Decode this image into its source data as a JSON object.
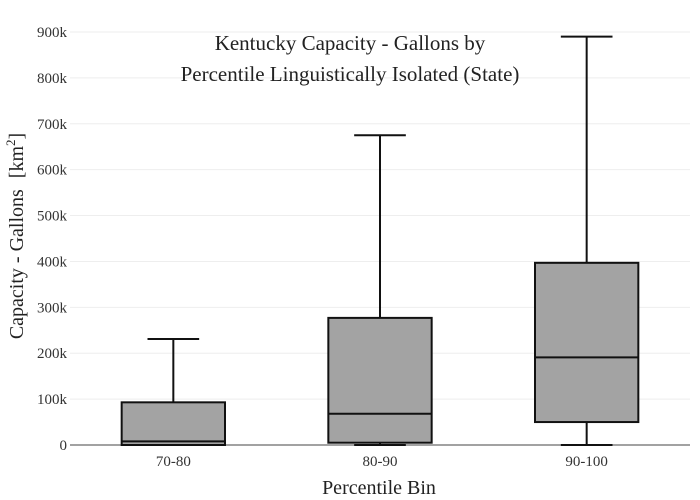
{
  "chart_data": {
    "type": "box",
    "title_lines": [
      "Kentucky Capacity - Gallons by",
      "Percentile Linguistically Isolated (State)"
    ],
    "xlabel": "Percentile Bin",
    "ylabel": "Capacity - Gallons",
    "ylabel_unit": "[km",
    "ylabel_unit_sup": "2",
    "ylabel_unit_close": "]",
    "ylim": [
      0,
      900000
    ],
    "y_ticks": [
      {
        "value": 0,
        "label": "0"
      },
      {
        "value": 100000,
        "label": "100k"
      },
      {
        "value": 200000,
        "label": "200k"
      },
      {
        "value": 300000,
        "label": "300k"
      },
      {
        "value": 400000,
        "label": "400k"
      },
      {
        "value": 500000,
        "label": "500k"
      },
      {
        "value": 600000,
        "label": "600k"
      },
      {
        "value": 700000,
        "label": "700k"
      },
      {
        "value": 800000,
        "label": "800k"
      },
      {
        "value": 900000,
        "label": "900k"
      }
    ],
    "grid": true,
    "box_color": "#a3a3a3",
    "line_color": "#111111",
    "categories": [
      "70-80",
      "80-90",
      "90-100"
    ],
    "boxes": [
      {
        "category": "70-80",
        "min": 0,
        "q1": 0,
        "median": 8000,
        "q3": 93000,
        "max": 231000
      },
      {
        "category": "80-90",
        "min": 0,
        "q1": 5000,
        "median": 68000,
        "q3": 277000,
        "max": 675000
      },
      {
        "category": "90-100",
        "min": 0,
        "q1": 50000,
        "median": 191000,
        "q3": 397000,
        "max": 890000
      }
    ]
  }
}
